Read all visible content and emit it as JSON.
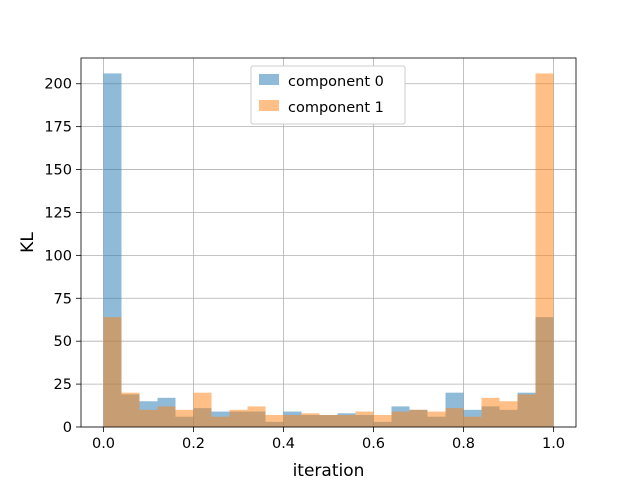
{
  "chart_data": {
    "type": "bar",
    "subtype": "overlaid-histogram",
    "title": "",
    "xlabel": "iteration",
    "ylabel": "KL",
    "xlim": [
      -0.05,
      1.05
    ],
    "ylim": [
      0,
      215
    ],
    "xticks": [
      "0.0",
      "0.2",
      "0.4",
      "0.6",
      "0.8",
      "1.0"
    ],
    "yticks": [
      "0",
      "25",
      "50",
      "75",
      "100",
      "125",
      "150",
      "175",
      "200"
    ],
    "grid": true,
    "legend_position": "top-center",
    "bin_edges": [
      0.0,
      0.04,
      0.08,
      0.12,
      0.16,
      0.2,
      0.24,
      0.28,
      0.32,
      0.36,
      0.4,
      0.44,
      0.48,
      0.52,
      0.56,
      0.6,
      0.64,
      0.68,
      0.72,
      0.76,
      0.8,
      0.84,
      0.88,
      0.92,
      0.96,
      1.0
    ],
    "series": [
      {
        "name": "component 0",
        "color": "#1f77b4",
        "values": [
          206,
          19,
          15,
          17,
          6,
          11,
          9,
          9,
          9,
          3,
          9,
          7,
          7,
          8,
          7,
          3,
          12,
          10,
          6,
          20,
          10,
          12,
          10,
          20,
          64
        ]
      },
      {
        "name": "component 1",
        "color": "#ff7f0e",
        "values": [
          64,
          20,
          10,
          12,
          10,
          20,
          6,
          10,
          12,
          7,
          7,
          8,
          7,
          7,
          9,
          7,
          9,
          10,
          9,
          11,
          6,
          17,
          15,
          19,
          206
        ]
      }
    ]
  }
}
